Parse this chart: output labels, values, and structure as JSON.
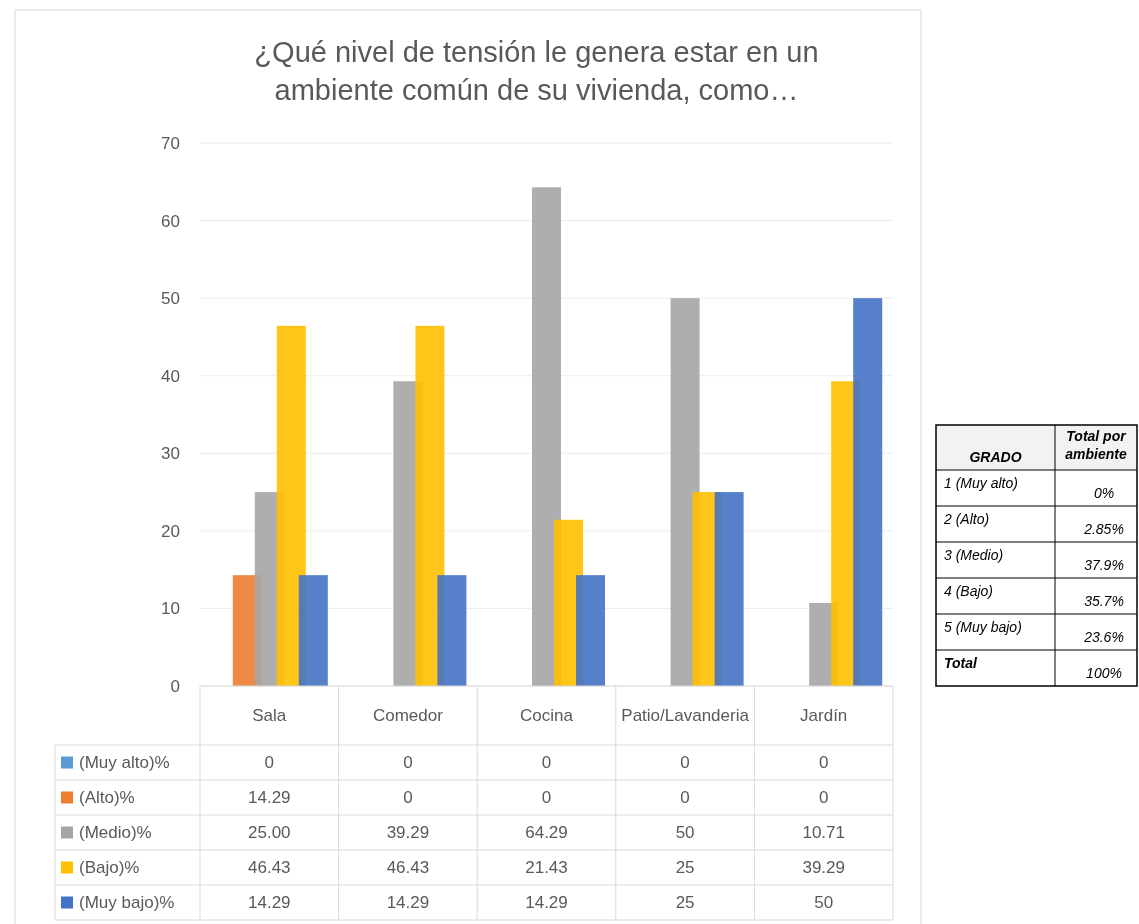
{
  "chart_data": [
    {
      "type": "bar",
      "title": "¿Qué nivel de tensión le genera estar en un ambiente común de su vivienda, como…",
      "categories": [
        "Sala",
        "Comedor",
        "Cocina",
        "Patio/Lavanderia",
        "Jardín"
      ],
      "series": [
        {
          "name": "(Muy alto)%",
          "color": "#5b9bd5",
          "values": [
            0,
            0,
            0,
            0,
            0
          ],
          "value_labels": [
            "0",
            "0",
            "0",
            "0",
            "0"
          ]
        },
        {
          "name": "(Alto)%",
          "color": "#ed7d31",
          "values": [
            14.29,
            0,
            0,
            0,
            0
          ],
          "value_labels": [
            "14.29",
            "0",
            "0",
            "0",
            "0"
          ]
        },
        {
          "name": "(Medio)%",
          "color": "#a5a5a5",
          "values": [
            25.0,
            39.29,
            64.29,
            50,
            10.71
          ],
          "value_labels": [
            "25.00",
            "39.29",
            "64.29",
            "50",
            "10.71"
          ]
        },
        {
          "name": "(Bajo)%",
          "color": "#ffc000",
          "values": [
            46.43,
            46.43,
            21.43,
            25,
            39.29
          ],
          "value_labels": [
            "46.43",
            "46.43",
            "21.43",
            "25",
            "39.29"
          ]
        },
        {
          "name": "(Muy bajo)%",
          "color": "#4472c4",
          "values": [
            14.29,
            14.29,
            14.29,
            25,
            50
          ],
          "value_labels": [
            "14.29",
            "14.29",
            "14.29",
            "25",
            "50"
          ]
        }
      ],
      "ylim": [
        0,
        70
      ],
      "yticks": [
        0,
        10,
        20,
        30,
        40,
        50,
        60,
        70
      ],
      "grid": "y",
      "legend": "bottom"
    },
    {
      "type": "other",
      "xlabel": "GRADO",
      "ylabel": "Total por ambiente",
      "categories": [
        "1 (Muy alto)",
        "2 (Alto)",
        "3 (Medio)",
        "4 (Bajo)",
        "5 (Muy bajo)",
        "Total"
      ],
      "value_labels": [
        "0%",
        "2.85%",
        "37.9%",
        "35.7%",
        "23.6%",
        "100%"
      ]
    }
  ]
}
